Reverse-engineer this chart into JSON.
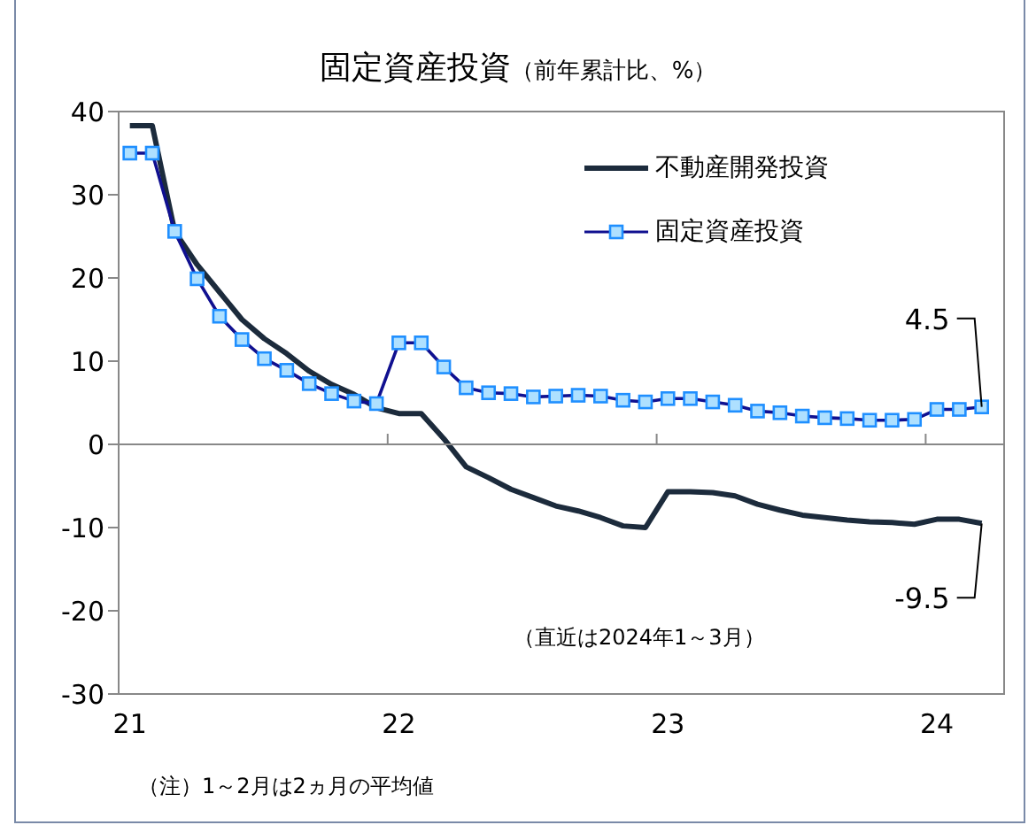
{
  "chart_data": {
    "type": "line",
    "title": "固定資産投資",
    "subtitle": "（前年累計比、%）",
    "x": [
      "2021-01",
      "2021-02",
      "2021-03",
      "2021-04",
      "2021-05",
      "2021-06",
      "2021-07",
      "2021-08",
      "2021-09",
      "2021-10",
      "2021-11",
      "2021-12",
      "2022-01",
      "2022-02",
      "2022-03",
      "2022-04",
      "2022-05",
      "2022-06",
      "2022-07",
      "2022-08",
      "2022-09",
      "2022-10",
      "2022-11",
      "2022-12",
      "2023-01",
      "2023-02",
      "2023-03",
      "2023-04",
      "2023-05",
      "2023-06",
      "2023-07",
      "2023-08",
      "2023-09",
      "2023-10",
      "2023-11",
      "2023-12",
      "2024-01",
      "2024-02",
      "2024-03"
    ],
    "series": [
      {
        "name": "不動産開発投資",
        "color": "#1c2b3c",
        "marker": "none",
        "values": [
          38.3,
          38.3,
          25.6,
          21.6,
          18.3,
          15.0,
          12.7,
          10.9,
          8.8,
          7.2,
          6.0,
          4.4,
          3.7,
          3.7,
          0.7,
          -2.7,
          -4.0,
          -5.4,
          -6.4,
          -7.4,
          -8.0,
          -8.8,
          -9.8,
          -10.0,
          -5.7,
          -5.7,
          -5.8,
          -6.2,
          -7.2,
          -7.9,
          -8.5,
          -8.8,
          -9.1,
          -9.3,
          -9.4,
          -9.6,
          -9.0,
          -9.0,
          -9.5
        ]
      },
      {
        "name": "固定資産投資",
        "color": "#101090",
        "marker": "square",
        "values": [
          35.0,
          35.0,
          25.6,
          19.9,
          15.4,
          12.6,
          10.3,
          8.9,
          7.3,
          6.1,
          5.2,
          4.9,
          12.2,
          12.2,
          9.3,
          6.8,
          6.2,
          6.1,
          5.7,
          5.8,
          5.9,
          5.8,
          5.3,
          5.1,
          5.5,
          5.5,
          5.1,
          4.7,
          4.0,
          3.8,
          3.4,
          3.2,
          3.1,
          2.9,
          2.9,
          3.0,
          4.2,
          4.2,
          4.5
        ]
      }
    ],
    "xlim": [
      "2020-12-16",
      "2024-04-01"
    ],
    "xticks": [
      {
        "value": "2021-01",
        "label": "21"
      },
      {
        "value": "2021-12-16",
        "label": null
      },
      {
        "value": "2022-01",
        "label": "22"
      },
      {
        "value": "2022-12-16",
        "label": null
      },
      {
        "value": "2023-01",
        "label": "23"
      },
      {
        "value": "2023-12-16",
        "label": null
      },
      {
        "value": "2024-01",
        "label": "24"
      }
    ],
    "ylim": [
      -30,
      40
    ],
    "yticks": [
      -30,
      -20,
      -10,
      0,
      10,
      20,
      30,
      40
    ],
    "legend": "top right",
    "annotations": [
      {
        "text": "4.5",
        "x": "2024-03",
        "y": 4.5
      },
      {
        "text": "-9.5",
        "x": "2024-03",
        "y": -9.5
      },
      "（直近は2024年1～3月）",
      "（注）1～2月は2ヵ月の平均値"
    ]
  }
}
